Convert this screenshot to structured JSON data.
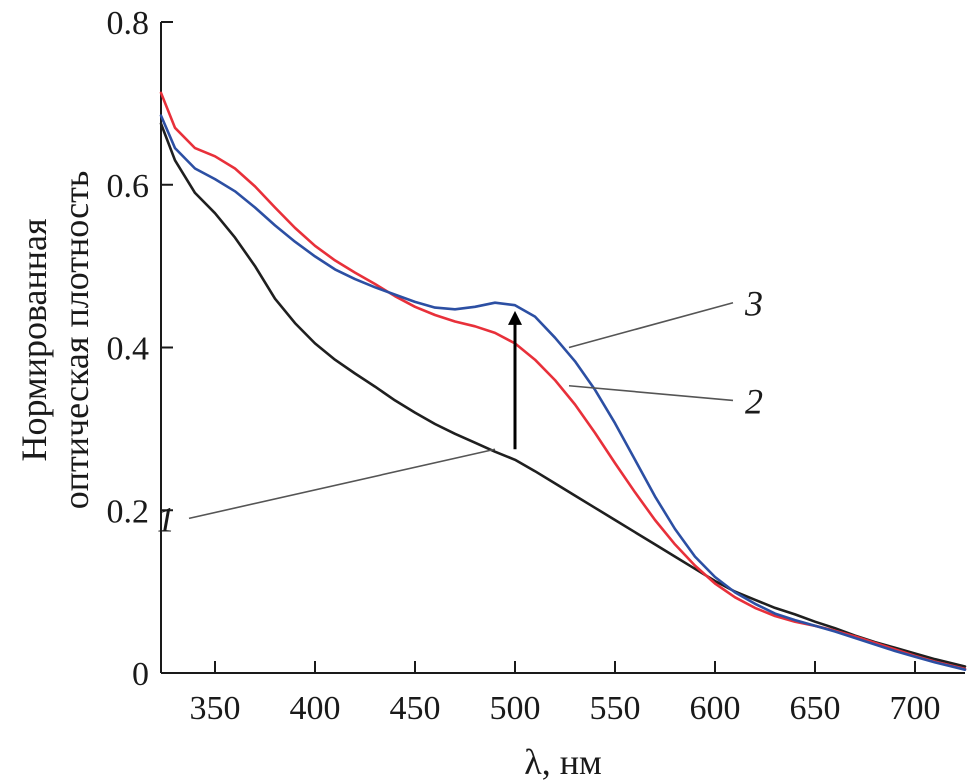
{
  "chart_data": {
    "type": "line",
    "title": "",
    "xlabel": "λ, нм",
    "ylabel_lines": [
      "Нормированная",
      "оптическая плотность"
    ],
    "xlim": [
      323,
      725
    ],
    "ylim": [
      0,
      0.8
    ],
    "x_ticks": [
      350,
      400,
      450,
      500,
      550,
      600,
      650,
      700
    ],
    "x_tick_labels": [
      "350",
      "400",
      "450",
      "500",
      "550",
      "600",
      "650",
      "700"
    ],
    "y_ticks": [
      0,
      0.2,
      0.4,
      0.6,
      0.8
    ],
    "y_tick_labels": [
      "0",
      "0.2",
      "0.4",
      "0.6",
      "0.8"
    ],
    "grid": false,
    "series": [
      {
        "name": "1",
        "color": "#1f1f1f",
        "x": [
          323,
          330,
          340,
          350,
          360,
          370,
          380,
          390,
          400,
          410,
          420,
          430,
          440,
          450,
          460,
          470,
          480,
          490,
          500,
          510,
          520,
          530,
          540,
          550,
          560,
          570,
          580,
          590,
          600,
          610,
          620,
          630,
          640,
          650,
          660,
          670,
          680,
          690,
          700,
          710,
          725
        ],
        "y": [
          0.675,
          0.63,
          0.59,
          0.565,
          0.535,
          0.5,
          0.46,
          0.43,
          0.405,
          0.385,
          0.368,
          0.352,
          0.335,
          0.32,
          0.306,
          0.294,
          0.283,
          0.272,
          0.262,
          0.248,
          0.233,
          0.218,
          0.203,
          0.188,
          0.173,
          0.158,
          0.143,
          0.128,
          0.113,
          0.1,
          0.09,
          0.08,
          0.072,
          0.063,
          0.055,
          0.046,
          0.038,
          0.031,
          0.024,
          0.017,
          0.008
        ]
      },
      {
        "name": "2",
        "color": "#e8303a",
        "x": [
          323,
          330,
          340,
          350,
          360,
          370,
          380,
          390,
          400,
          410,
          420,
          430,
          440,
          450,
          460,
          470,
          480,
          490,
          500,
          510,
          520,
          530,
          540,
          550,
          560,
          570,
          580,
          590,
          600,
          610,
          620,
          630,
          640,
          650,
          660,
          670,
          680,
          690,
          700,
          710,
          725
        ],
        "y": [
          0.713,
          0.67,
          0.645,
          0.635,
          0.62,
          0.598,
          0.572,
          0.547,
          0.525,
          0.507,
          0.492,
          0.478,
          0.463,
          0.45,
          0.44,
          0.432,
          0.426,
          0.418,
          0.405,
          0.385,
          0.36,
          0.33,
          0.295,
          0.258,
          0.222,
          0.188,
          0.158,
          0.132,
          0.11,
          0.093,
          0.08,
          0.07,
          0.063,
          0.058,
          0.052,
          0.045,
          0.037,
          0.029,
          0.021,
          0.014,
          0.005
        ]
      },
      {
        "name": "3",
        "color": "#2c4fa3",
        "x": [
          323,
          330,
          340,
          350,
          360,
          370,
          380,
          390,
          400,
          410,
          420,
          430,
          440,
          450,
          460,
          470,
          480,
          490,
          500,
          510,
          520,
          530,
          540,
          550,
          560,
          570,
          580,
          590,
          600,
          610,
          620,
          630,
          640,
          650,
          660,
          670,
          680,
          690,
          700,
          710,
          725
        ],
        "y": [
          0.685,
          0.645,
          0.62,
          0.607,
          0.592,
          0.572,
          0.55,
          0.53,
          0.512,
          0.496,
          0.484,
          0.474,
          0.465,
          0.456,
          0.449,
          0.447,
          0.45,
          0.455,
          0.452,
          0.438,
          0.412,
          0.383,
          0.348,
          0.307,
          0.262,
          0.217,
          0.177,
          0.143,
          0.118,
          0.099,
          0.085,
          0.073,
          0.065,
          0.058,
          0.051,
          0.043,
          0.035,
          0.027,
          0.02,
          0.013,
          0.004
        ]
      }
    ],
    "curve_labels": [
      {
        "text": "1",
        "x": 490,
        "y": 0.275,
        "label_x": 330,
        "label_y": 0.19
      },
      {
        "text": "2",
        "x": 527,
        "y": 0.353,
        "label_x": 612,
        "label_y": 0.335
      },
      {
        "text": "3",
        "x": 527,
        "y": 0.4,
        "label_x": 612,
        "label_y": 0.455
      }
    ],
    "arrow": {
      "x": 500,
      "y_from": 0.275,
      "y_to": 0.445,
      "color": "#000000"
    }
  }
}
